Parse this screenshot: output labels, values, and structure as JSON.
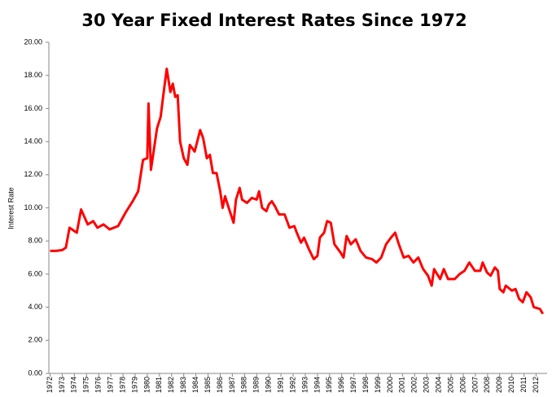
{
  "chart_data": {
    "type": "line",
    "title": "30 Year Fixed Interest Rates Since 1972",
    "y_label": "Interest Rate",
    "grid": false,
    "xlim": [
      1971.9,
      2012.9
    ],
    "xticks": [
      1972,
      1973,
      1974,
      1975,
      1976,
      1977,
      1978,
      1979,
      1980,
      1981,
      1982,
      1983,
      1984,
      1985,
      1986,
      1987,
      1988,
      1989,
      1990,
      1991,
      1992,
      1993,
      1994,
      1995,
      1996,
      1997,
      1998,
      1999,
      2000,
      2001,
      2002,
      2003,
      2004,
      2005,
      2006,
      2007,
      2008,
      2009,
      2010,
      2011,
      2012
    ],
    "ylim": [
      0,
      20
    ],
    "yticks": [
      {
        "value": 0,
        "label": "0.00"
      },
      {
        "value": 2,
        "label": "2.00"
      },
      {
        "value": 4,
        "label": "4.00"
      },
      {
        "value": 6,
        "label": "6.00"
      },
      {
        "value": 8,
        "label": "8.00"
      },
      {
        "value": 10,
        "label": "10.00"
      },
      {
        "value": 12,
        "label": "12.00"
      },
      {
        "value": 14,
        "label": "14.00"
      },
      {
        "value": 16,
        "label": "16.00"
      },
      {
        "value": 18,
        "label": "18.00"
      },
      {
        "value": 20,
        "label": "20.00"
      }
    ],
    "x": [
      1972.0,
      1972.5,
      1973.0,
      1973.3,
      1973.6,
      1974.2,
      1974.55,
      1975.1,
      1975.55,
      1975.9,
      1976.4,
      1976.9,
      1977.6,
      1978.2,
      1978.8,
      1979.25,
      1979.65,
      1980.0,
      1980.1,
      1980.3,
      1980.6,
      1980.8,
      1981.1,
      1981.3,
      1981.6,
      1981.9,
      1982.1,
      1982.3,
      1982.5,
      1982.7,
      1983.0,
      1983.3,
      1983.5,
      1983.9,
      1984.35,
      1984.6,
      1984.9,
      1985.15,
      1985.4,
      1985.7,
      1986.0,
      1986.2,
      1986.4,
      1986.7,
      1987.1,
      1987.3,
      1987.6,
      1987.8,
      1988.2,
      1988.6,
      1989.0,
      1989.2,
      1989.45,
      1989.8,
      1990.0,
      1990.25,
      1990.5,
      1990.85,
      1991.3,
      1991.7,
      1992.1,
      1992.3,
      1992.65,
      1992.9,
      1993.3,
      1993.7,
      1994.0,
      1994.2,
      1994.55,
      1994.8,
      1995.1,
      1995.4,
      1995.9,
      1996.15,
      1996.4,
      1996.75,
      1997.15,
      1997.55,
      1998.0,
      1998.5,
      1998.85,
      1999.25,
      1999.65,
      2000.05,
      2000.4,
      2000.7,
      2001.1,
      2001.5,
      2001.9,
      2002.3,
      2002.7,
      2003.1,
      2003.4,
      2003.6,
      2004.1,
      2004.4,
      2004.75,
      2005.3,
      2005.7,
      2006.1,
      2006.5,
      2006.95,
      2007.4,
      2007.6,
      2007.95,
      2008.25,
      2008.6,
      2008.85,
      2009.0,
      2009.3,
      2009.5,
      2010.0,
      2010.3,
      2010.6,
      2010.9,
      2011.2,
      2011.55,
      2011.8,
      2012.3,
      2012.55
    ],
    "series": [
      {
        "name": "Interest Rate",
        "color": "#ff0000",
        "values": [
          7.4,
          7.4,
          7.45,
          7.6,
          8.8,
          8.5,
          9.9,
          9.0,
          9.2,
          8.8,
          9.0,
          8.7,
          8.9,
          9.7,
          10.4,
          11.0,
          12.9,
          13.0,
          16.3,
          12.3,
          13.8,
          14.8,
          15.5,
          16.7,
          18.4,
          17.0,
          17.5,
          16.7,
          16.8,
          14.0,
          13.0,
          12.6,
          13.8,
          13.4,
          14.7,
          14.2,
          13.0,
          13.2,
          12.1,
          12.1,
          11.0,
          10.0,
          10.7,
          10.0,
          9.1,
          10.5,
          11.2,
          10.5,
          10.3,
          10.6,
          10.5,
          11.0,
          10.0,
          9.8,
          10.2,
          10.4,
          10.1,
          9.6,
          9.6,
          8.8,
          8.9,
          8.5,
          7.9,
          8.2,
          7.5,
          6.9,
          7.1,
          8.2,
          8.5,
          9.2,
          9.1,
          7.8,
          7.3,
          7.0,
          8.3,
          7.8,
          8.1,
          7.4,
          7.0,
          6.9,
          6.7,
          7.0,
          7.8,
          8.2,
          8.5,
          7.8,
          7.0,
          7.1,
          6.7,
          7.0,
          6.3,
          5.9,
          5.3,
          6.3,
          5.7,
          6.3,
          5.7,
          5.7,
          6.0,
          6.2,
          6.7,
          6.2,
          6.2,
          6.7,
          6.1,
          5.9,
          6.4,
          6.2,
          5.1,
          4.9,
          5.3,
          5.0,
          5.1,
          4.5,
          4.3,
          4.9,
          4.6,
          4.0,
          3.9,
          3.6
        ]
      }
    ]
  }
}
